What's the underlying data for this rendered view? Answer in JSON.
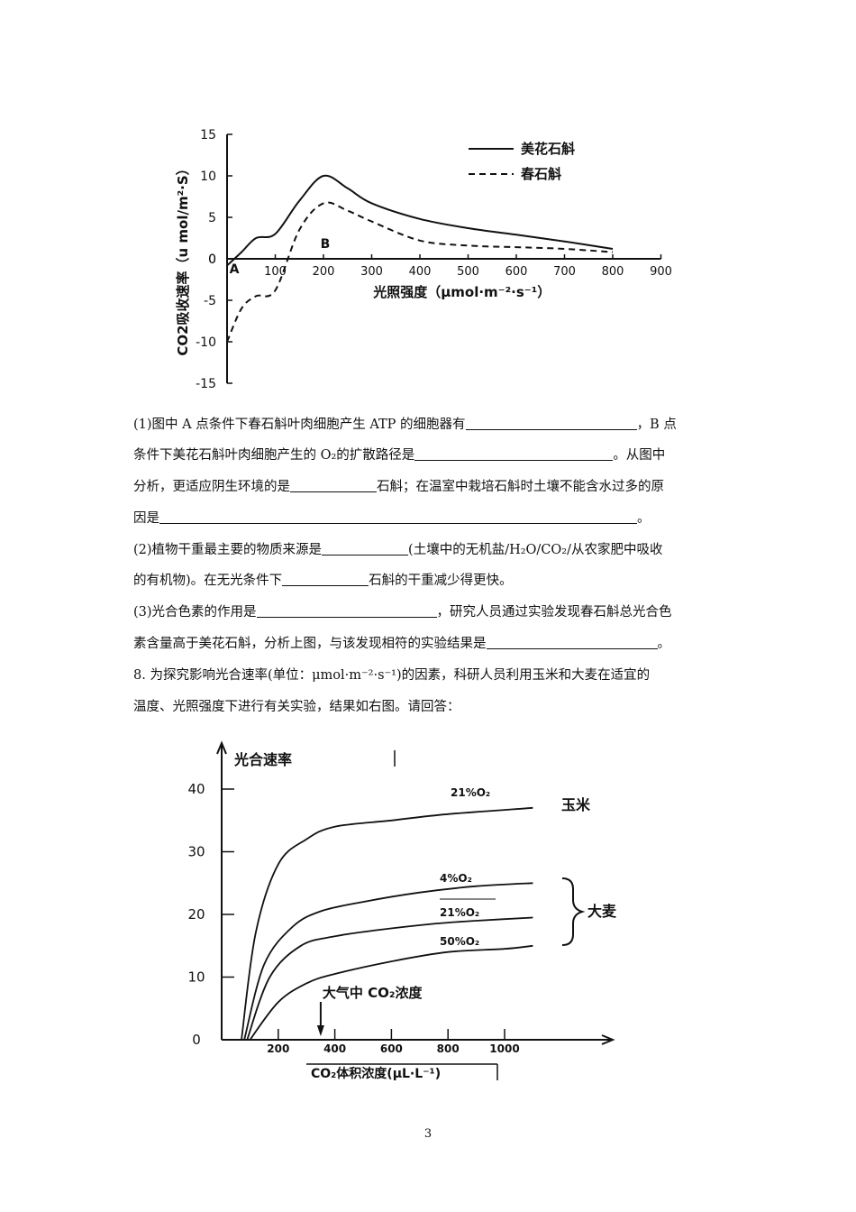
{
  "chart_data": [
    {
      "type": "line",
      "title": "",
      "ylabel": "CO2吸收速率（u mol/m²·S）",
      "xlabel": "光照强度（μmol·m⁻²·s⁻¹）",
      "xlim": [
        0,
        900
      ],
      "ylim": [
        -15,
        15
      ],
      "xticks": [
        "100",
        "200",
        "300",
        "400",
        "500",
        "600",
        "700",
        "800",
        "900"
      ],
      "yticks": [
        "15",
        "10",
        "5",
        "0",
        "-5",
        "-10",
        "-15"
      ],
      "point_labels": [
        "A",
        "B"
      ],
      "legend_position": "top-right",
      "series": [
        {
          "name": "美花石斛",
          "style": "solid",
          "x": [
            0,
            30,
            60,
            100,
            150,
            200,
            250,
            300,
            400,
            500,
            600,
            700,
            800
          ],
          "y": [
            -0.8,
            0.8,
            2.5,
            3,
            7,
            10,
            8.5,
            6.7,
            4.8,
            3.7,
            2.9,
            2.1,
            1.2
          ]
        },
        {
          "name": "春石斛",
          "style": "dashed",
          "x": [
            0,
            30,
            60,
            100,
            150,
            200,
            250,
            300,
            400,
            500,
            600,
            700,
            800
          ],
          "y": [
            -10,
            -6,
            -4.5,
            -3.8,
            3.5,
            6.7,
            5.8,
            4.5,
            2.2,
            1.6,
            1.4,
            1.2,
            0.8
          ]
        }
      ]
    },
    {
      "type": "line",
      "title": "",
      "ylabel": "光合速率",
      "xlabel": "CO₂体积浓度(μL·L⁻¹)",
      "xlim": [
        0,
        1100
      ],
      "ylim": [
        0,
        45
      ],
      "xticks": [
        "200",
        "400",
        "600",
        "800",
        "1000"
      ],
      "yticks": [
        "0",
        "10",
        "20",
        "30",
        "40"
      ],
      "annotation": "大气中 CO₂浓度",
      "annotation_x": 350,
      "group_labels": [
        "玉米",
        "大麦"
      ],
      "series": [
        {
          "name": "21%O₂",
          "group": "玉米",
          "x": [
            70,
            120,
            200,
            300,
            400,
            600,
            800,
            1100
          ],
          "y": [
            0,
            17,
            28,
            32,
            34,
            35,
            36,
            37
          ]
        },
        {
          "name": "4%O₂",
          "group": "大麦",
          "x": [
            80,
            150,
            250,
            350,
            500,
            700,
            900,
            1100
          ],
          "y": [
            0,
            12,
            18,
            20.5,
            22,
            23.5,
            24.5,
            25
          ]
        },
        {
          "name": "21%O₂",
          "group": "大麦",
          "x": [
            90,
            170,
            280,
            400,
            550,
            750,
            900,
            1100
          ],
          "y": [
            0,
            10,
            15,
            16.5,
            17.5,
            18.5,
            19,
            19.5
          ]
        },
        {
          "name": "50%O₂",
          "group": "大麦",
          "x": [
            100,
            200,
            300,
            400,
            600,
            800,
            1000,
            1100
          ],
          "y": [
            0,
            6,
            9,
            10.5,
            12.5,
            14,
            14.5,
            15
          ]
        }
      ]
    }
  ],
  "text": {
    "p1": "(1)图中 A 点条件下春石斛叶肉细胞产生 ATP 的细胞器有",
    "p1b": "，B 点",
    "p2": "条件下美花石斛叶肉细胞产生的 O₂的扩散路径是",
    "p2b": "。从图中",
    "p3": "分析，更适应阴生环境的是",
    "p3b": "石斛；在温室中栽培石斛时土壤不能含水过多的原",
    "p4": "因是",
    "p4b": "。",
    "p5": "(2)植物干重最主要的物质来源是",
    "p5b": "(土壤中的无机盐/H₂O/CO₂/从农家肥中吸收",
    "p6": "的有机物)。在无光条件下",
    "p6b": "石斛的干重减少得更快。",
    "p7": "(3)光合色素的作用是",
    "p7b": "，研究人员通过实验发现春石斛总光合色",
    "p8": "素含量高于美花石斛，分析上图，与该发现相符的实验结果是",
    "p8b": "。",
    "p9": "8. 为探究影响光合速率(单位：μmol·m⁻²·s⁻¹)的因素，科研人员利用玉米和大麦在适宜的",
    "p10": "温度、光照强度下进行有关实验，结果如右图。请回答："
  },
  "page_number": "3"
}
